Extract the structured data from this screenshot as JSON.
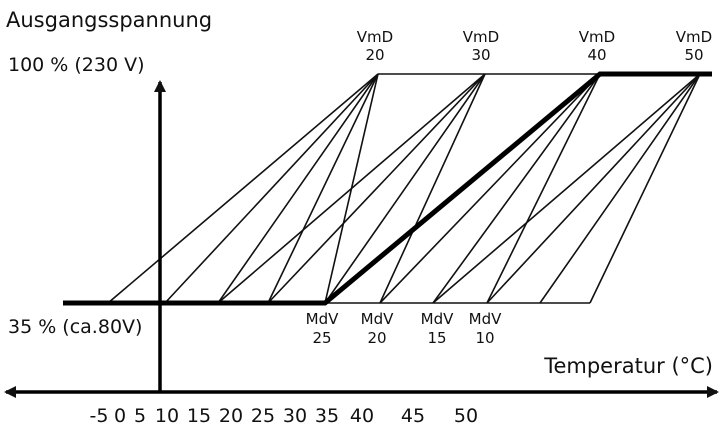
{
  "diagram": {
    "y_axis_label": "Ausgangsspannung",
    "x_axis_label": "Temperatur (°C)",
    "level_high_label": "100 % (230 V)",
    "level_low_label": "35 % (ca.80V)",
    "vmd_labels": [
      {
        "top": "VmD",
        "bottom": "20"
      },
      {
        "top": "VmD",
        "bottom": "30"
      },
      {
        "top": "VmD",
        "bottom": "40"
      },
      {
        "top": "VmD",
        "bottom": "50"
      }
    ],
    "mdv_labels": [
      {
        "top": "MdV",
        "bottom": "25"
      },
      {
        "top": "MdV",
        "bottom": "20"
      },
      {
        "top": "MdV",
        "bottom": "15"
      },
      {
        "top": "MdV",
        "bottom": "10"
      }
    ],
    "x_ticks": [
      "-5",
      "0",
      "5",
      "10",
      "15",
      "20",
      "25",
      "30",
      "35",
      "40",
      "45",
      "50"
    ],
    "highlighted_curve": {
      "vmd": "40",
      "mdv": "25"
    }
  }
}
